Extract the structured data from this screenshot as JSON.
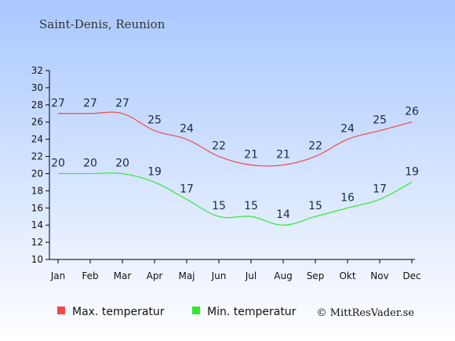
{
  "title": "Saint-Denis, Reunion",
  "credit": "© MittResVader.se",
  "chart_data": {
    "type": "line",
    "categories": [
      "Jan",
      "Feb",
      "Mar",
      "Apr",
      "Maj",
      "Jun",
      "Jul",
      "Aug",
      "Sep",
      "Okt",
      "Nov",
      "Dec"
    ],
    "ylim": [
      10,
      32
    ],
    "yticks": [
      10,
      12,
      14,
      16,
      18,
      20,
      22,
      24,
      26,
      28,
      30,
      32
    ],
    "grid": false,
    "legend_position": "bottom",
    "series": [
      {
        "name": "Max. temperatur",
        "color": "#f04a4a",
        "values": [
          27,
          27,
          27,
          25,
          24,
          22,
          21,
          21,
          22,
          24,
          25,
          26
        ]
      },
      {
        "name": "Min. temperatur",
        "color": "#33e833",
        "values": [
          20,
          20,
          20,
          19,
          17,
          15,
          15,
          14,
          15,
          16,
          17,
          19
        ]
      }
    ]
  }
}
